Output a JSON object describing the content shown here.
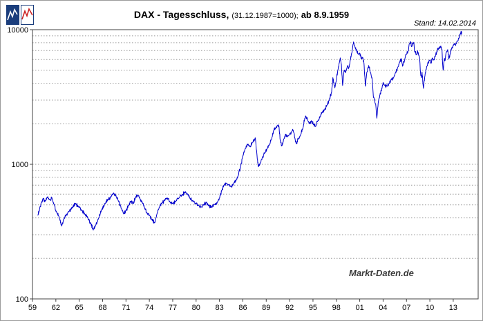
{
  "header": {
    "title_main": "DAX - Tagesschluss,",
    "title_note": "(31.12.1987=1000);",
    "title_suffix": "ab 8.9.1959",
    "stand_label": "Stand: 14.02.2014"
  },
  "watermark_text": "Markt-Daten.de",
  "chart_data": {
    "type": "line",
    "title": "DAX - Tagesschluss, (31.12.1987=1000); ab 8.9.1959",
    "y_scale": "log",
    "ylim": [
      100,
      10000
    ],
    "y_ticks": [
      "10000",
      "1000",
      "100"
    ],
    "y_tick_values": [
      10000,
      1000,
      100
    ],
    "y_minor_gridlines": [
      200,
      300,
      400,
      500,
      600,
      700,
      800,
      900,
      1000,
      2000,
      3000,
      4000,
      5000,
      6000,
      7000,
      8000,
      9000
    ],
    "xlim": [
      1959,
      2016.2
    ],
    "x_tick_years": [
      1959,
      1962,
      1965,
      1968,
      1971,
      1974,
      1977,
      1980,
      1983,
      1986,
      1989,
      1992,
      1995,
      1998,
      2001,
      2004,
      2007,
      2010,
      2013
    ],
    "x_tick_labels": [
      "59",
      "62",
      "65",
      "68",
      "71",
      "74",
      "77",
      "80",
      "83",
      "86",
      "89",
      "92",
      "95",
      "98",
      "01",
      "04",
      "07",
      "10",
      "13"
    ],
    "grid": "horizontal dashed",
    "legend": "none",
    "line_color": "#0000cc",
    "grid_color": "#999999",
    "axis_color": "#404040",
    "series": [
      {
        "name": "DAX Tagesschluss",
        "points": [
          [
            1959.68,
            417
          ],
          [
            1959.9,
            460
          ],
          [
            1960.1,
            510
          ],
          [
            1960.4,
            556
          ],
          [
            1960.6,
            528
          ],
          [
            1960.9,
            570
          ],
          [
            1961.2,
            545
          ],
          [
            1961.5,
            565
          ],
          [
            1961.8,
            500
          ],
          [
            1962.1,
            440
          ],
          [
            1962.4,
            410
          ],
          [
            1962.75,
            348
          ],
          [
            1963.0,
            390
          ],
          [
            1963.3,
            418
          ],
          [
            1963.7,
            445
          ],
          [
            1964.1,
            480
          ],
          [
            1964.5,
            512
          ],
          [
            1964.9,
            487
          ],
          [
            1965.3,
            455
          ],
          [
            1965.7,
            428
          ],
          [
            1966.1,
            400
          ],
          [
            1966.5,
            362
          ],
          [
            1966.8,
            325
          ],
          [
            1967.1,
            352
          ],
          [
            1967.5,
            400
          ],
          [
            1967.9,
            462
          ],
          [
            1968.3,
            512
          ],
          [
            1968.7,
            548
          ],
          [
            1969.1,
            575
          ],
          [
            1969.4,
            612
          ],
          [
            1969.7,
            590
          ],
          [
            1970.0,
            540
          ],
          [
            1970.4,
            470
          ],
          [
            1970.7,
            428
          ],
          [
            1971.0,
            452
          ],
          [
            1971.3,
            492
          ],
          [
            1971.6,
            530
          ],
          [
            1971.9,
            512
          ],
          [
            1972.2,
            562
          ],
          [
            1972.5,
            592
          ],
          [
            1972.8,
            555
          ],
          [
            1973.1,
            520
          ],
          [
            1973.4,
            472
          ],
          [
            1973.7,
            432
          ],
          [
            1974.0,
            420
          ],
          [
            1974.3,
            392
          ],
          [
            1974.7,
            368
          ],
          [
            1975.0,
            432
          ],
          [
            1975.3,
            480
          ],
          [
            1975.6,
            512
          ],
          [
            1976.0,
            545
          ],
          [
            1976.3,
            562
          ],
          [
            1976.6,
            532
          ],
          [
            1977.0,
            512
          ],
          [
            1977.4,
            532
          ],
          [
            1977.8,
            562
          ],
          [
            1978.2,
            592
          ],
          [
            1978.6,
            622
          ],
          [
            1978.9,
            602
          ],
          [
            1979.2,
            562
          ],
          [
            1979.6,
            532
          ],
          [
            1980.0,
            512
          ],
          [
            1980.3,
            496
          ],
          [
            1980.7,
            482
          ],
          [
            1981.0,
            502
          ],
          [
            1981.3,
            522
          ],
          [
            1981.6,
            492
          ],
          [
            1982.0,
            482
          ],
          [
            1982.4,
            502
          ],
          [
            1982.8,
            532
          ],
          [
            1983.0,
            562
          ],
          [
            1983.3,
            642
          ],
          [
            1983.6,
            702
          ],
          [
            1983.9,
            722
          ],
          [
            1984.2,
            702
          ],
          [
            1984.5,
            682
          ],
          [
            1984.8,
            712
          ],
          [
            1985.1,
            752
          ],
          [
            1985.4,
            822
          ],
          [
            1985.7,
            952
          ],
          [
            1986.0,
            1150
          ],
          [
            1986.3,
            1300
          ],
          [
            1986.6,
            1410
          ],
          [
            1986.9,
            1350
          ],
          [
            1987.2,
            1450
          ],
          [
            1987.6,
            1570
          ],
          [
            1987.85,
            1100
          ],
          [
            1988.0,
            960
          ],
          [
            1988.2,
            1000
          ],
          [
            1988.5,
            1120
          ],
          [
            1988.8,
            1220
          ],
          [
            1989.1,
            1300
          ],
          [
            1989.4,
            1400
          ],
          [
            1989.7,
            1540
          ],
          [
            1989.95,
            1780
          ],
          [
            1990.2,
            1850
          ],
          [
            1990.5,
            1960
          ],
          [
            1990.65,
            1880
          ],
          [
            1990.8,
            1500
          ],
          [
            1991.0,
            1370
          ],
          [
            1991.2,
            1500
          ],
          [
            1991.45,
            1660
          ],
          [
            1991.7,
            1600
          ],
          [
            1992.0,
            1680
          ],
          [
            1992.3,
            1750
          ],
          [
            1992.45,
            1800
          ],
          [
            1992.7,
            1550
          ],
          [
            1992.85,
            1420
          ],
          [
            1993.1,
            1550
          ],
          [
            1993.4,
            1650
          ],
          [
            1993.7,
            1850
          ],
          [
            1993.95,
            2200
          ],
          [
            1994.1,
            2270
          ],
          [
            1994.35,
            2100
          ],
          [
            1994.6,
            2020
          ],
          [
            1994.85,
            2080
          ],
          [
            1995.1,
            1980
          ],
          [
            1995.3,
            1910
          ],
          [
            1995.6,
            2100
          ],
          [
            1995.9,
            2250
          ],
          [
            1996.2,
            2450
          ],
          [
            1996.5,
            2550
          ],
          [
            1996.8,
            2750
          ],
          [
            1997.1,
            3000
          ],
          [
            1997.4,
            3450
          ],
          [
            1997.55,
            4400
          ],
          [
            1997.7,
            3900
          ],
          [
            1997.8,
            3700
          ],
          [
            1998.0,
            4250
          ],
          [
            1998.2,
            5000
          ],
          [
            1998.5,
            6170
          ],
          [
            1998.65,
            5500
          ],
          [
            1998.8,
            3850
          ],
          [
            1999.0,
            5000
          ],
          [
            1999.15,
            4800
          ],
          [
            1999.4,
            5350
          ],
          [
            1999.6,
            5200
          ],
          [
            1999.8,
            6000
          ],
          [
            2000.0,
            6750
          ],
          [
            2000.2,
            8100
          ],
          [
            2000.4,
            7400
          ],
          [
            2000.6,
            7000
          ],
          [
            2000.8,
            6600
          ],
          [
            2001.0,
            6700
          ],
          [
            2001.2,
            6100
          ],
          [
            2001.4,
            6200
          ],
          [
            2001.55,
            5600
          ],
          [
            2001.72,
            3800
          ],
          [
            2001.9,
            4800
          ],
          [
            2002.05,
            5200
          ],
          [
            2002.2,
            5300
          ],
          [
            2002.4,
            4800
          ],
          [
            2002.6,
            4300
          ],
          [
            2002.75,
            3200
          ],
          [
            2002.9,
            3000
          ],
          [
            2003.05,
            2800
          ],
          [
            2003.2,
            2200
          ],
          [
            2003.4,
            2950
          ],
          [
            2003.6,
            3300
          ],
          [
            2003.8,
            3550
          ],
          [
            2004.0,
            4050
          ],
          [
            2004.2,
            3850
          ],
          [
            2004.5,
            3800
          ],
          [
            2004.8,
            4000
          ],
          [
            2005.0,
            4250
          ],
          [
            2005.3,
            4350
          ],
          [
            2005.6,
            4800
          ],
          [
            2005.9,
            5300
          ],
          [
            2006.1,
            5700
          ],
          [
            2006.35,
            6100
          ],
          [
            2006.5,
            5350
          ],
          [
            2006.8,
            6100
          ],
          [
            2007.0,
            6600
          ],
          [
            2007.2,
            6900
          ],
          [
            2007.4,
            7900
          ],
          [
            2007.55,
            8100
          ],
          [
            2007.65,
            7500
          ],
          [
            2007.8,
            7900
          ],
          [
            2007.95,
            8000
          ],
          [
            2008.05,
            6850
          ],
          [
            2008.3,
            6500
          ],
          [
            2008.4,
            7000
          ],
          [
            2008.6,
            6450
          ],
          [
            2008.7,
            6000
          ],
          [
            2008.8,
            4800
          ],
          [
            2008.9,
            4400
          ],
          [
            2009.0,
            4850
          ],
          [
            2009.18,
            3666
          ],
          [
            2009.4,
            4700
          ],
          [
            2009.6,
            5350
          ],
          [
            2009.8,
            5700
          ],
          [
            2010.0,
            5950
          ],
          [
            2010.15,
            5600
          ],
          [
            2010.3,
            6150
          ],
          [
            2010.45,
            5950
          ],
          [
            2010.7,
            6300
          ],
          [
            2010.9,
            6900
          ],
          [
            2011.1,
            7200
          ],
          [
            2011.35,
            7520
          ],
          [
            2011.55,
            7150
          ],
          [
            2011.62,
            5700
          ],
          [
            2011.72,
            5000
          ],
          [
            2011.85,
            6100
          ],
          [
            2011.95,
            5900
          ],
          [
            2012.1,
            6800
          ],
          [
            2012.3,
            7100
          ],
          [
            2012.45,
            6050
          ],
          [
            2012.6,
            6600
          ],
          [
            2012.8,
            7300
          ],
          [
            2013.0,
            7700
          ],
          [
            2013.2,
            7850
          ],
          [
            2013.3,
            7600
          ],
          [
            2013.45,
            8100
          ],
          [
            2013.6,
            8300
          ],
          [
            2013.75,
            8700
          ],
          [
            2013.9,
            9300
          ],
          [
            2014.0,
            9740
          ],
          [
            2014.06,
            9200
          ],
          [
            2014.12,
            9660
          ]
        ]
      }
    ]
  }
}
